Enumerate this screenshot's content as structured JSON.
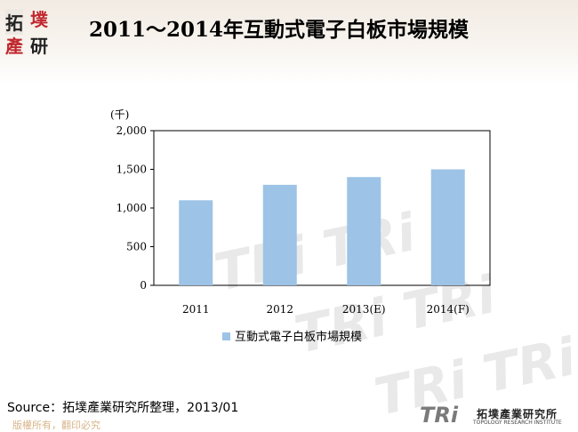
{
  "header": {
    "title": "2011～2014年互動式電子白板市場規模",
    "logo_chars": [
      "拓",
      "墣",
      "產",
      "研"
    ]
  },
  "chart_data": {
    "type": "bar",
    "unit_label": "(千)",
    "categories": [
      "2011",
      "2012",
      "2013(E)",
      "2014(F)"
    ],
    "series": [
      {
        "name": "互動式電子白板市場規模",
        "values": [
          1100,
          1300,
          1400,
          1500
        ]
      }
    ],
    "ylim": [
      0,
      2000
    ],
    "yticks": [
      "0",
      "500",
      "1,000",
      "1,500",
      "2,000"
    ],
    "grid": false,
    "legend_position": "bottom",
    "bar_color": "#9dc3e6"
  },
  "footer": {
    "source": "Source：拓墣產業研究所整理，2013/01",
    "copyright": "版權所有，翻印必究",
    "logo_text": "TRi",
    "logo_name": "拓墣產業研究所",
    "logo_english": "TOPOLOGY RESEARCH INSTITUTE"
  }
}
